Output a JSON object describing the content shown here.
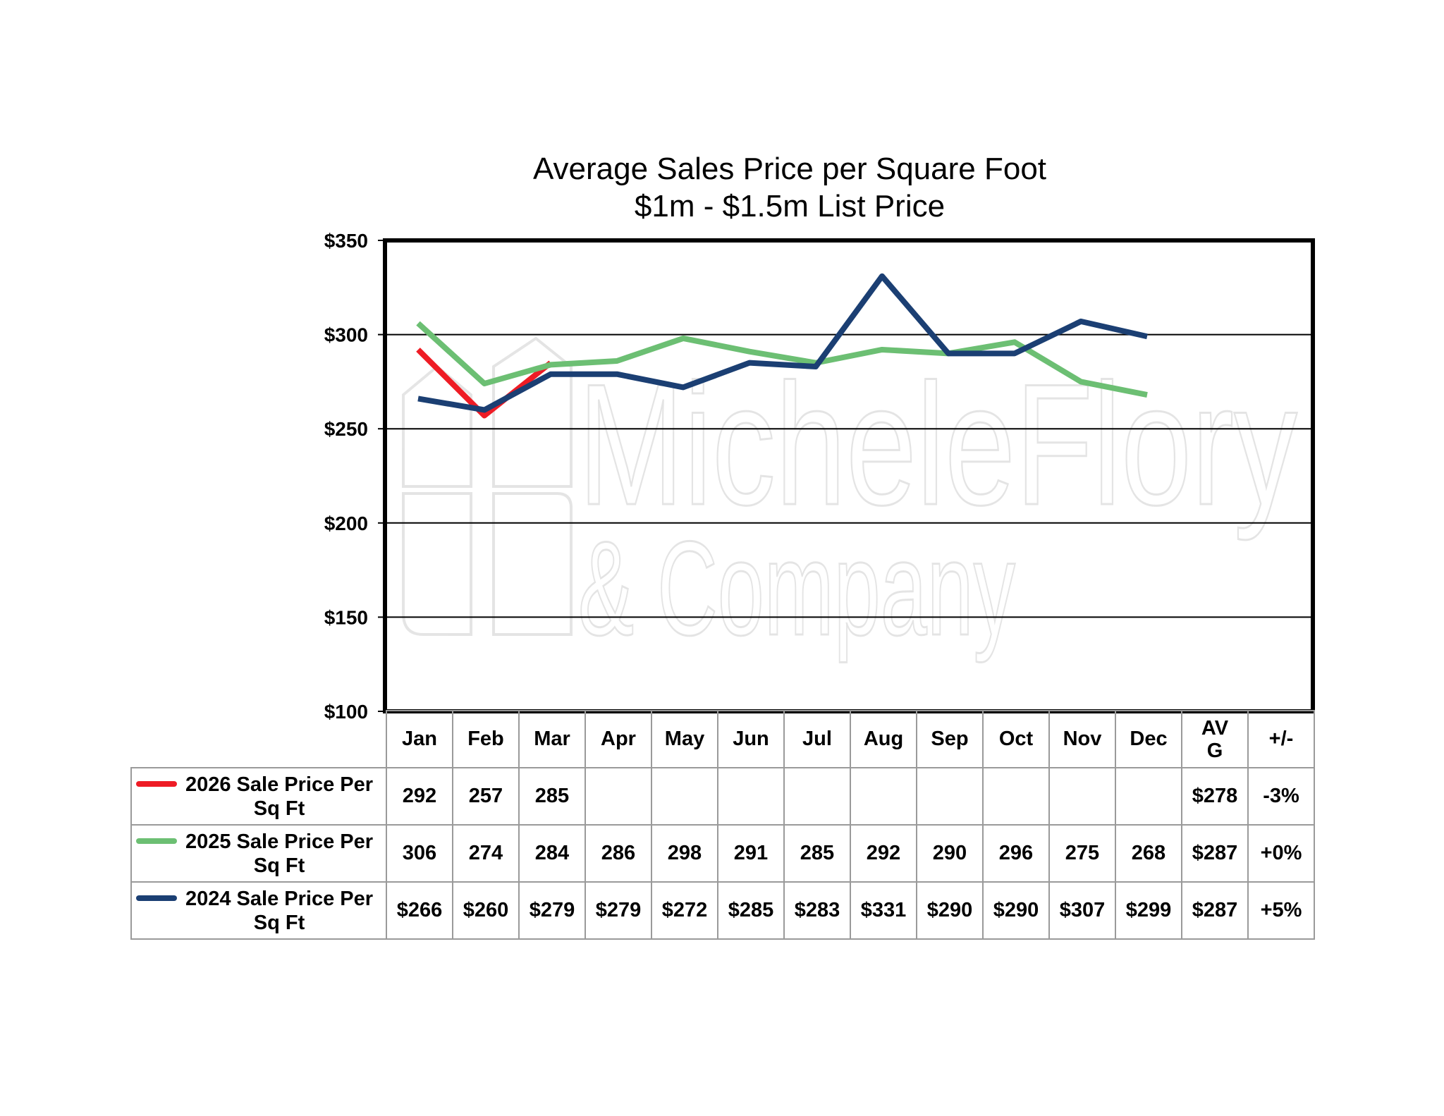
{
  "title_line1": "Average Sales Price per Square Foot",
  "title_line2": "$1m - $1.5m List Price",
  "watermark": "Michele Flory & Company",
  "chart_data": {
    "type": "line",
    "categories": [
      "Jan",
      "Feb",
      "Mar",
      "Apr",
      "May",
      "Jun",
      "Jul",
      "Aug",
      "Sep",
      "Oct",
      "Nov",
      "Dec"
    ],
    "ylim": [
      100,
      350
    ],
    "yticks": [
      100,
      150,
      200,
      250,
      300,
      350
    ],
    "ytick_labels": [
      "$100",
      "$150",
      "$200",
      "$250",
      "$300",
      "$350"
    ],
    "grid": true,
    "series": [
      {
        "name": "2026 Sale Price Per Sq Ft",
        "color": "#ee1c25",
        "values": [
          292,
          257,
          285,
          null,
          null,
          null,
          null,
          null,
          null,
          null,
          null,
          null
        ],
        "cells": [
          "292",
          "257",
          "285",
          "",
          "",
          "",
          "",
          "",
          "",
          "",
          "",
          ""
        ],
        "avg": "$278",
        "change": "-3%"
      },
      {
        "name": "2025 Sale Price Per Sq Ft",
        "color": "#6cbf73",
        "values": [
          306,
          274,
          284,
          286,
          298,
          291,
          285,
          292,
          290,
          296,
          275,
          268
        ],
        "cells": [
          "306",
          "274",
          "284",
          "286",
          "298",
          "291",
          "285",
          "292",
          "290",
          "296",
          "275",
          "268"
        ],
        "avg": "$287",
        "change": "+0%"
      },
      {
        "name": "2024 Sale Price Per Sq Ft",
        "color": "#1b3f73",
        "values": [
          266,
          260,
          279,
          279,
          272,
          285,
          283,
          331,
          290,
          290,
          307,
          299
        ],
        "cells": [
          "$266",
          "$260",
          "$279",
          "$279",
          "$272",
          "$285",
          "$283",
          "$331",
          "$290",
          "$290",
          "$307",
          "$299"
        ],
        "avg": "$287",
        "change": "+5%"
      }
    ]
  },
  "table": {
    "avg_header": "AV\nG",
    "change_header": "+/-"
  }
}
